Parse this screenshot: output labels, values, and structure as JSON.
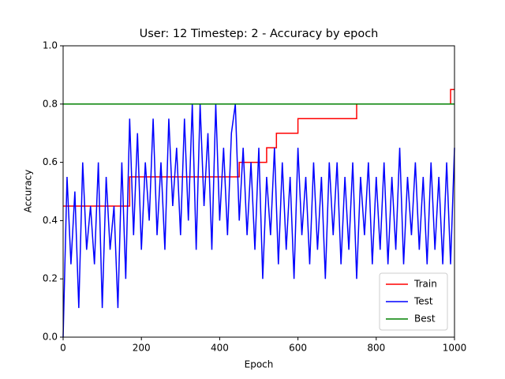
{
  "chart_data": {
    "type": "line",
    "title": "User: 12 Timestep: 2 - Accuracy by epoch",
    "x_label": "Epoch",
    "y_label": "Accuracy",
    "xlim": [
      0,
      1000
    ],
    "xticks": [
      0,
      200,
      400,
      600,
      800,
      1000
    ],
    "ylim": [
      0,
      1
    ],
    "yticks": [
      {
        "value": 0,
        "label": "0.0"
      },
      {
        "value": 0.2,
        "label": "0.2"
      },
      {
        "value": 0.4,
        "label": "0.4"
      },
      {
        "value": 0.6,
        "label": "0.6"
      },
      {
        "value": 0.8,
        "label": "0.8"
      },
      {
        "value": 1,
        "label": "1.0"
      }
    ],
    "grid": false,
    "legend": "lower right",
    "series": [
      {
        "name": "Train",
        "color": "#ff0000",
        "x": [
          0,
          170,
          170,
          450,
          450,
          520,
          520,
          545,
          545,
          600,
          600,
          750,
          750,
          990,
          990,
          1000
        ],
        "values": [
          0.45,
          0.45,
          0.55,
          0.55,
          0.6,
          0.6,
          0.65,
          0.65,
          0.7,
          0.7,
          0.75,
          0.75,
          0.8,
          0.8,
          0.85,
          0.85
        ]
      },
      {
        "name": "Test",
        "color": "#0000ff",
        "x": [
          0,
          10,
          20,
          30,
          40,
          50,
          60,
          70,
          80,
          90,
          100,
          110,
          120,
          130,
          140,
          150,
          160,
          170,
          180,
          190,
          200,
          210,
          220,
          230,
          240,
          250,
          260,
          270,
          280,
          290,
          300,
          310,
          320,
          330,
          340,
          350,
          360,
          370,
          380,
          390,
          400,
          410,
          420,
          430,
          440,
          450,
          460,
          470,
          480,
          490,
          500,
          510,
          520,
          530,
          540,
          550,
          560,
          570,
          580,
          590,
          600,
          610,
          620,
          630,
          640,
          650,
          660,
          670,
          680,
          690,
          700,
          710,
          720,
          730,
          740,
          750,
          760,
          770,
          780,
          790,
          800,
          810,
          820,
          830,
          840,
          850,
          860,
          870,
          880,
          890,
          900,
          910,
          920,
          930,
          940,
          950,
          960,
          970,
          980,
          990,
          1000
        ],
        "values": [
          0,
          0.55,
          0.25,
          0.5,
          0.1,
          0.6,
          0.3,
          0.45,
          0.25,
          0.6,
          0.1,
          0.55,
          0.3,
          0.45,
          0.1,
          0.6,
          0.2,
          0.75,
          0.35,
          0.7,
          0.3,
          0.6,
          0.4,
          0.75,
          0.35,
          0.6,
          0.3,
          0.75,
          0.45,
          0.65,
          0.35,
          0.75,
          0.4,
          0.8,
          0.3,
          0.8,
          0.45,
          0.7,
          0.3,
          0.8,
          0.4,
          0.65,
          0.35,
          0.7,
          0.8,
          0.4,
          0.65,
          0.35,
          0.6,
          0.3,
          0.65,
          0.2,
          0.55,
          0.35,
          0.65,
          0.25,
          0.6,
          0.3,
          0.55,
          0.2,
          0.65,
          0.35,
          0.55,
          0.25,
          0.6,
          0.3,
          0.55,
          0.2,
          0.6,
          0.35,
          0.6,
          0.25,
          0.55,
          0.3,
          0.6,
          0.2,
          0.55,
          0.35,
          0.6,
          0.25,
          0.55,
          0.3,
          0.6,
          0.25,
          0.55,
          0.3,
          0.65,
          0.25,
          0.55,
          0.35,
          0.6,
          0.3,
          0.55,
          0.25,
          0.6,
          0.3,
          0.55,
          0.25,
          0.6,
          0.25,
          0.65
        ]
      },
      {
        "name": "Best",
        "color": "#008000",
        "x": [
          0,
          1000
        ],
        "values": [
          0.8,
          0.8
        ]
      }
    ]
  }
}
